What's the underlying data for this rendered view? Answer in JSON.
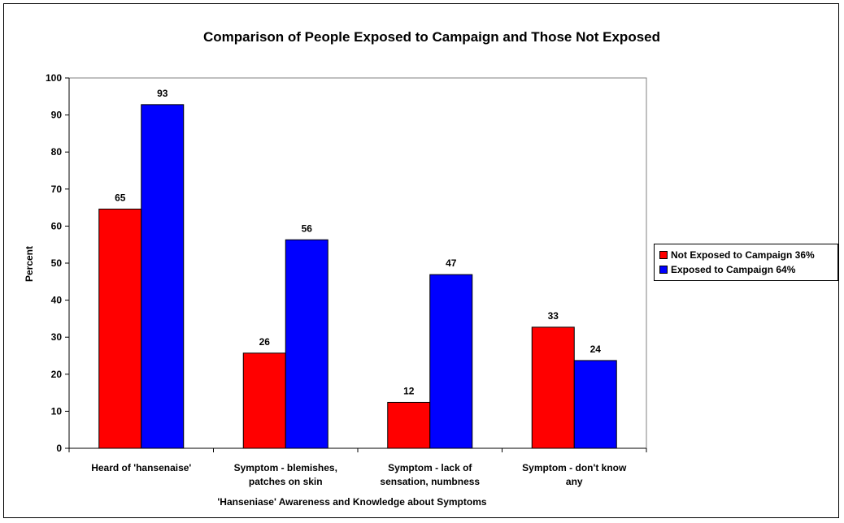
{
  "chart_data": {
    "type": "bar",
    "title": "Comparison of People Exposed to Campaign and Those Not Exposed",
    "xlabel": "'Hanseniase' Awareness and Knowledge about Symptoms",
    "ylabel": "Percent",
    "ylim": [
      0,
      100
    ],
    "yticks": [
      "0",
      "10",
      "20",
      "30",
      "40",
      "50",
      "60",
      "70",
      "80",
      "90",
      "100"
    ],
    "categories": [
      [
        "Heard of 'hansenaise'"
      ],
      [
        "Symptom - blemishes,",
        "patches on skin"
      ],
      [
        "Symptom - lack of",
        "sensation, numbness"
      ],
      [
        "Symptom - don't know",
        "any"
      ]
    ],
    "series": [
      {
        "name": "Not Exposed to Campaign 36%",
        "color": "#ff0000",
        "values": [
          65,
          26,
          12,
          33
        ],
        "value_labels": [
          64.6,
          25.7,
          12.4,
          32.7
        ]
      },
      {
        "name": "Exposed to Campaign 64%",
        "color": "#0000ff",
        "values": [
          93,
          56,
          47,
          24
        ],
        "value_labels": [
          92.8,
          56.3,
          46.9,
          23.7
        ]
      }
    ],
    "grid": false,
    "legend_position": "right"
  }
}
